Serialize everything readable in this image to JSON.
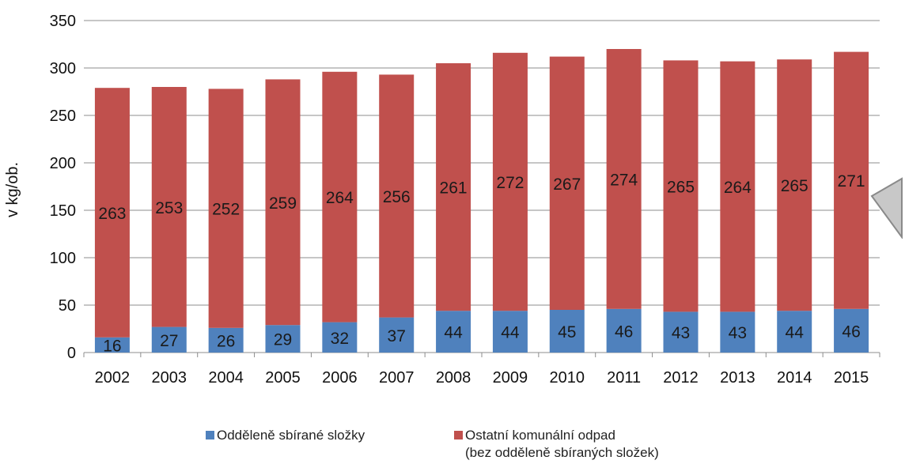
{
  "chart_data": {
    "type": "stacked-bar",
    "categories": [
      "2002",
      "2003",
      "2004",
      "2005",
      "2006",
      "2007",
      "2008",
      "2009",
      "2010",
      "2011",
      "2012",
      "2013",
      "2014",
      "2015"
    ],
    "series": [
      {
        "name": "Odděleně sbírané složky",
        "color": "#4f81bd",
        "values": [
          16,
          27,
          26,
          29,
          32,
          37,
          44,
          44,
          45,
          46,
          43,
          43,
          44,
          46
        ]
      },
      {
        "name": "Ostatní komunální odpad (bez odděleně sbíraných složek)",
        "color": "#c0504d",
        "values": [
          263,
          253,
          252,
          259,
          264,
          256,
          261,
          272,
          267,
          274,
          265,
          264,
          265,
          271
        ]
      }
    ],
    "ylabel": "v kg/ob.",
    "ylim": [
      0,
      350
    ],
    "yticks": [
      0,
      50,
      100,
      150,
      200,
      250,
      300,
      350
    ],
    "grid": true,
    "legend_position": "bottom"
  },
  "legend": {
    "item1": "Odděleně sbírané složky",
    "item2_line1": "Ostatní komunální odpad",
    "item2_line2": "(bez odděleně sbíraných složek)"
  },
  "icons": {
    "cursor": "mouse-pointer-icon"
  }
}
